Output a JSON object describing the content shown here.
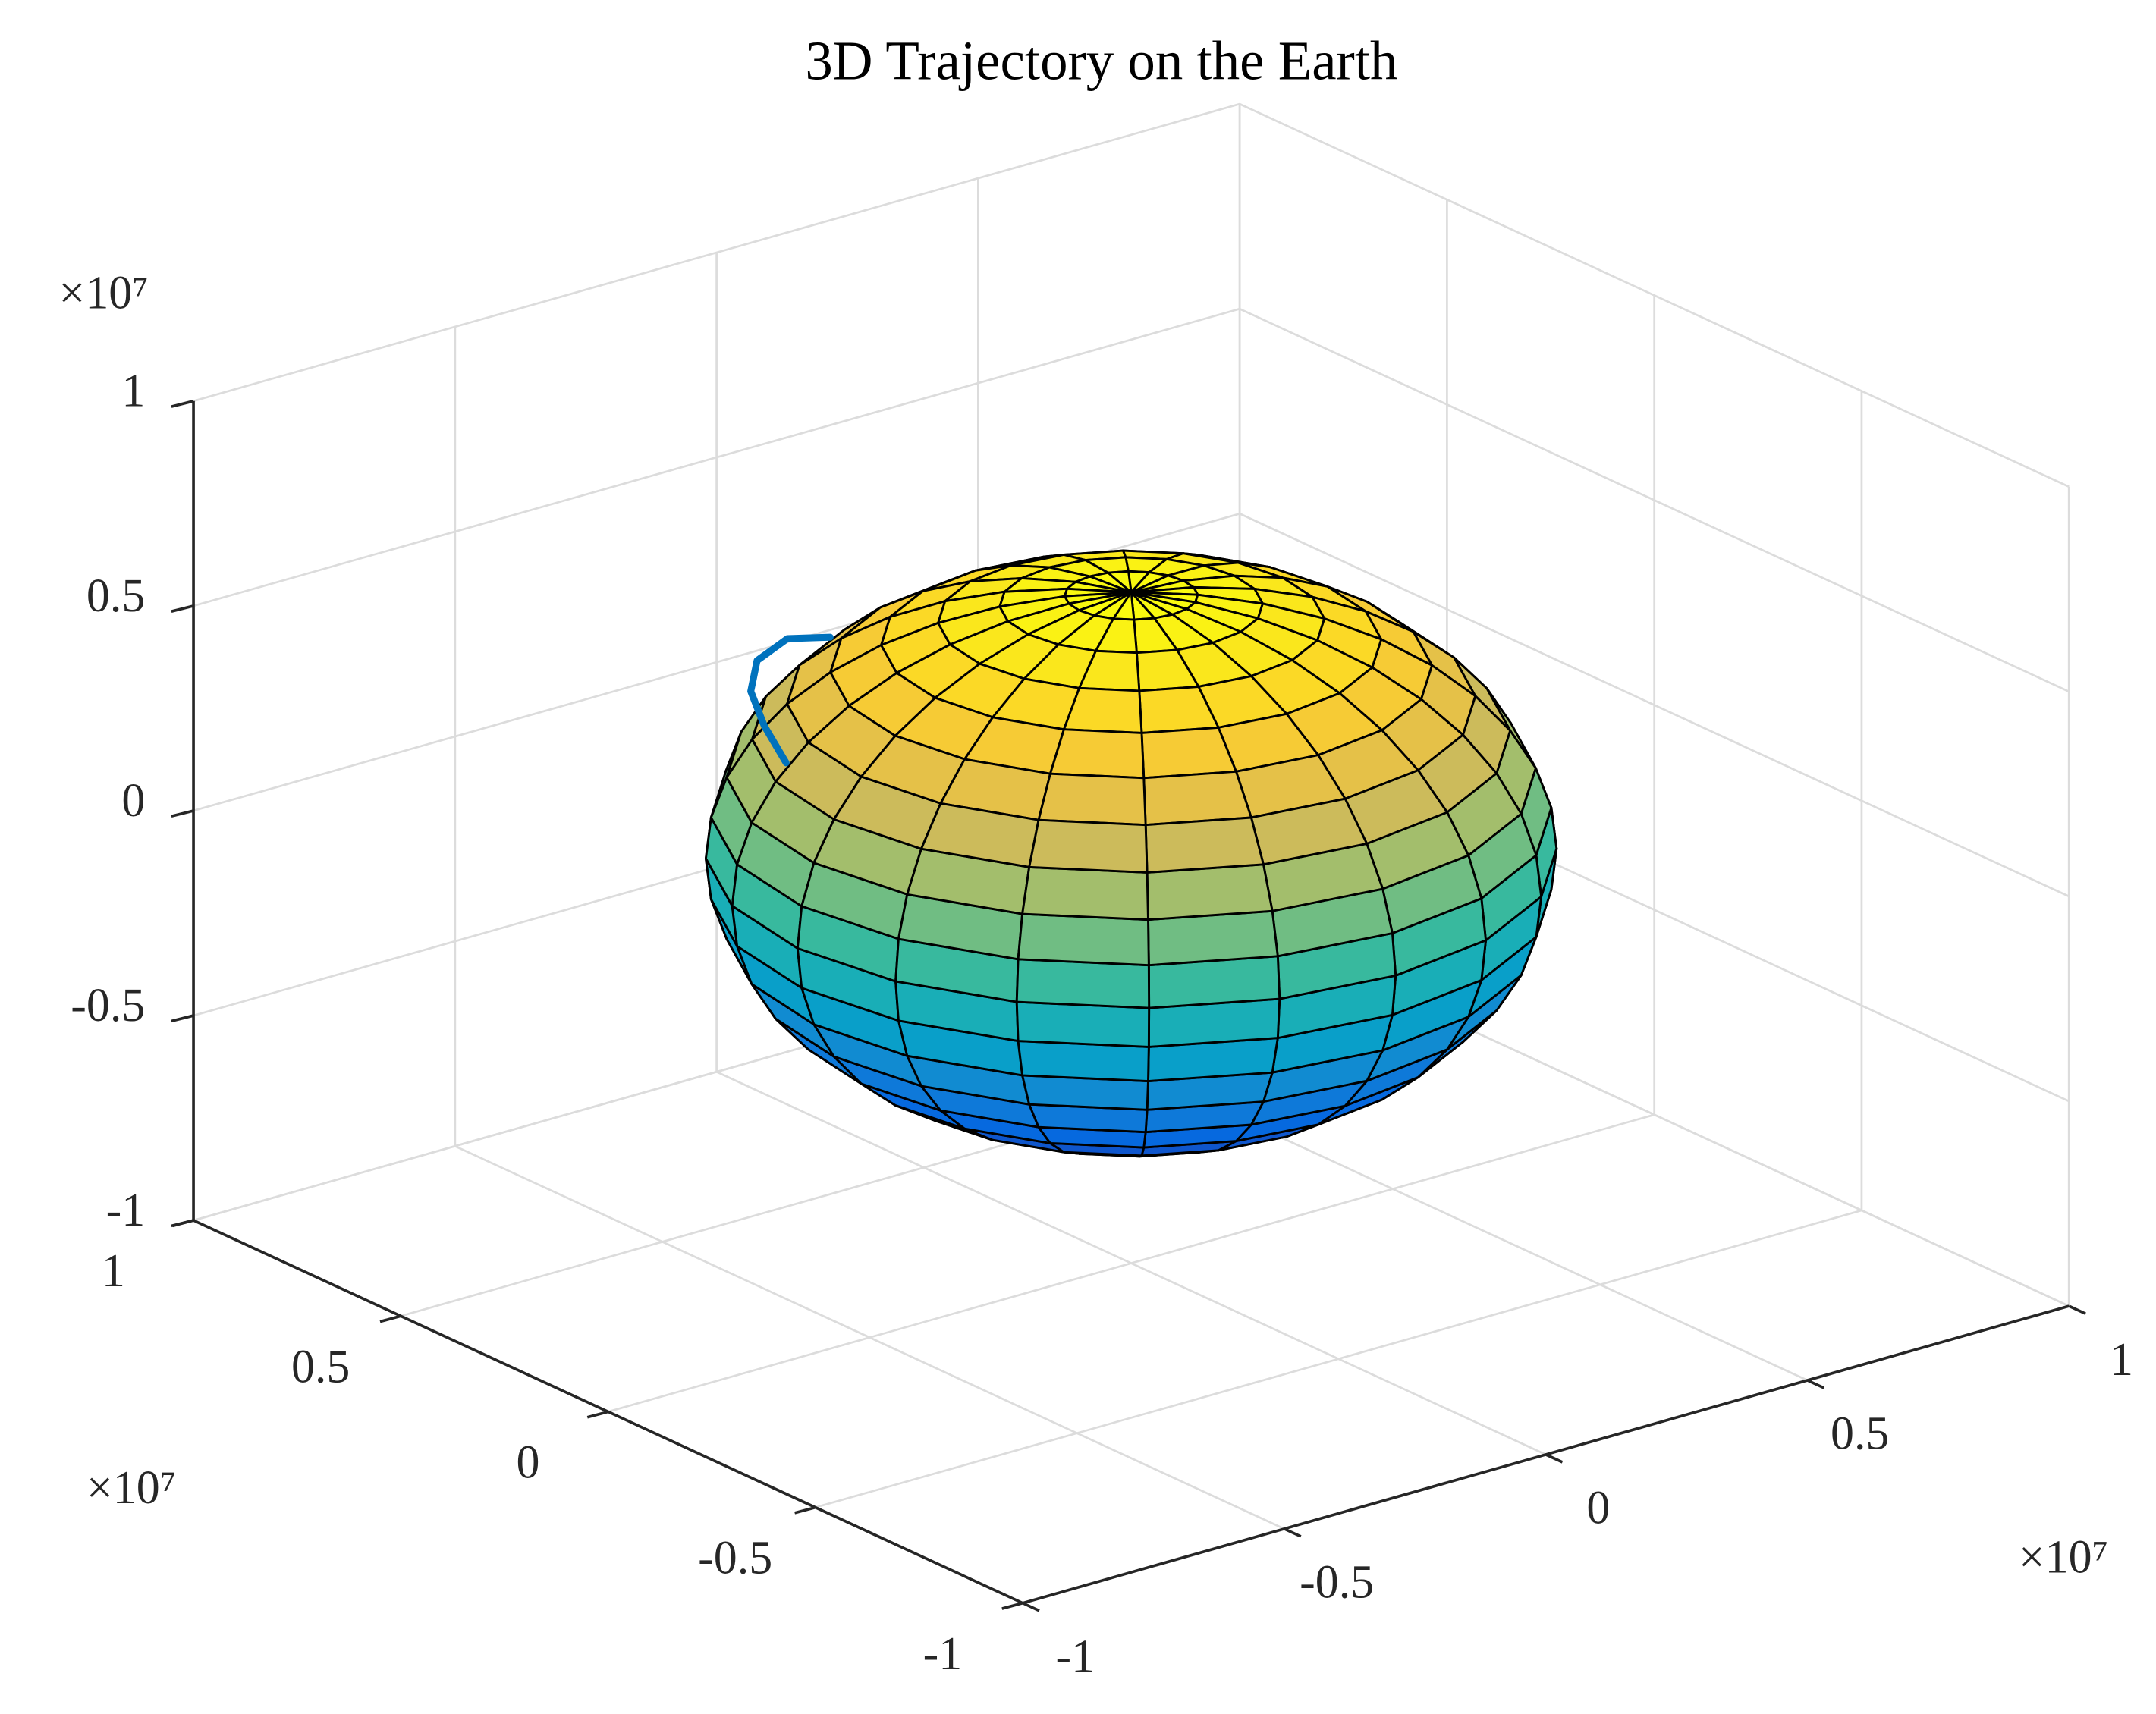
{
  "chart_data": {
    "type": "surface3d",
    "title": "3D Trajectory on the Earth",
    "xlim": [
      -1,
      1
    ],
    "ylim": [
      -1,
      1
    ],
    "zlim": [
      -1,
      1
    ],
    "xticks": [
      -1,
      -0.5,
      0,
      0.5,
      1
    ],
    "yticks": [
      -1,
      -0.5,
      0,
      0.5,
      1
    ],
    "zticks": [
      -1,
      -0.5,
      0,
      0.5,
      1
    ],
    "x_exponent": "×10⁷",
    "y_exponent": "×10⁷",
    "z_exponent": "×10⁷",
    "grid": true,
    "view": [
      -37.5,
      30
    ],
    "surface": {
      "radius": 0.6378,
      "mesh": 20,
      "edge_color": "#000000",
      "colormap": [
        "#352a87",
        "#0363e1",
        "#1485d4",
        "#06a7c6",
        "#38b99e",
        "#92bf73",
        "#d9ba56",
        "#fcce2e",
        "#f9fb0e"
      ]
    },
    "series": [
      {
        "color": "#0072bd",
        "x": [
          -0.1,
          -0.15,
          -0.2,
          -0.22,
          -0.21,
          -0.2
        ],
        "y": [
          0.6,
          0.64,
          0.65,
          0.64,
          0.62,
          0.58
        ],
        "z": [
          0.284,
          0.28,
          0.24,
          0.177,
          0.098,
          0.023
        ]
      }
    ]
  }
}
